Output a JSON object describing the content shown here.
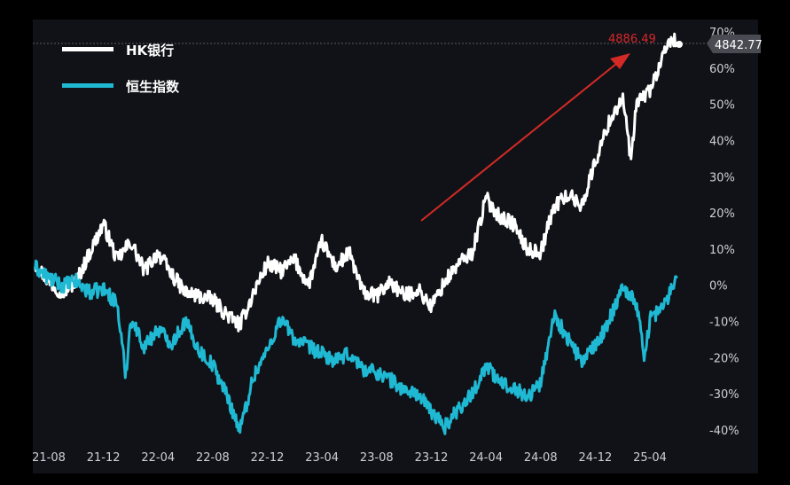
{
  "chart_data": {
    "type": "line",
    "title": "",
    "xlabel": "",
    "ylabel": "",
    "x_ticks": [
      "21-08",
      "21-12",
      "22-04",
      "22-08",
      "22-12",
      "23-04",
      "23-08",
      "23-12",
      "24-04",
      "24-08",
      "24-12",
      "25-04"
    ],
    "y_ticks": [
      "70%",
      "60%",
      "50%",
      "40%",
      "30%",
      "20%",
      "10%",
      "0%",
      "-10%",
      "-20%",
      "-30%",
      "-40%"
    ],
    "ylim": [
      -42,
      72
    ],
    "x_range": [
      "2021-07",
      "2025-06"
    ],
    "grid": false,
    "legend": "top-left",
    "background": "#111217",
    "series": [
      {
        "name": "HK银行",
        "color": "#ffffff",
        "points": [
          [
            "2021-07",
            6
          ],
          [
            "2021-08",
            1
          ],
          [
            "2021-09",
            -2
          ],
          [
            "2021-10",
            1
          ],
          [
            "2021-11",
            9
          ],
          [
            "2021-12",
            17
          ],
          [
            "2022-01",
            7
          ],
          [
            "2022-02",
            12
          ],
          [
            "2022-03",
            4
          ],
          [
            "2022-04",
            9
          ],
          [
            "2022-05",
            3
          ],
          [
            "2022-06",
            -2
          ],
          [
            "2022-07",
            -3
          ],
          [
            "2022-08",
            -4
          ],
          [
            "2022-09",
            -8
          ],
          [
            "2022-10",
            -11
          ],
          [
            "2022-11",
            -2
          ],
          [
            "2022-12",
            6
          ],
          [
            "2023-01",
            4
          ],
          [
            "2023-02",
            7
          ],
          [
            "2023-03",
            0
          ],
          [
            "2023-04",
            12
          ],
          [
            "2023-05",
            5
          ],
          [
            "2023-06",
            9
          ],
          [
            "2023-07",
            -2
          ],
          [
            "2023-08",
            -3
          ],
          [
            "2023-09",
            1
          ],
          [
            "2023-10",
            -3
          ],
          [
            "2023-11",
            -1
          ],
          [
            "2023-12",
            -6
          ],
          [
            "2024-01",
            1
          ],
          [
            "2024-02",
            6
          ],
          [
            "2024-03",
            9
          ],
          [
            "2024-04",
            24
          ],
          [
            "2024-05",
            19
          ],
          [
            "2024-06",
            17
          ],
          [
            "2024-07",
            10
          ],
          [
            "2024-08",
            9
          ],
          [
            "2024-09",
            22
          ],
          [
            "2024-10",
            25
          ],
          [
            "2024-11",
            22
          ],
          [
            "2024-12",
            34
          ],
          [
            "2025-01",
            45
          ],
          [
            "2025-02",
            52
          ],
          [
            "2025-02-20",
            34
          ],
          [
            "2025-03",
            50
          ],
          [
            "2025-04",
            54
          ],
          [
            "2025-05",
            63
          ],
          [
            "2025-05-15",
            68
          ],
          [
            "2025-06",
            67
          ]
        ]
      },
      {
        "name": "恒生指数",
        "color": "#1fb9d4",
        "points": [
          [
            "2021-07",
            5
          ],
          [
            "2021-08",
            2
          ],
          [
            "2021-09",
            0
          ],
          [
            "2021-10",
            1
          ],
          [
            "2021-11",
            -2
          ],
          [
            "2021-12",
            -1
          ],
          [
            "2022-01",
            -5
          ],
          [
            "2022-01-20",
            -25
          ],
          [
            "2022-02",
            -9
          ],
          [
            "2022-03",
            -17
          ],
          [
            "2022-04",
            -12
          ],
          [
            "2022-05",
            -16
          ],
          [
            "2022-06",
            -10
          ],
          [
            "2022-07",
            -18
          ],
          [
            "2022-08",
            -22
          ],
          [
            "2022-09",
            -30
          ],
          [
            "2022-10",
            -40
          ],
          [
            "2022-11",
            -25
          ],
          [
            "2022-12",
            -18
          ],
          [
            "2023-01",
            -9
          ],
          [
            "2023-02",
            -15
          ],
          [
            "2023-03",
            -17
          ],
          [
            "2023-04",
            -19
          ],
          [
            "2023-05",
            -21
          ],
          [
            "2023-06",
            -19
          ],
          [
            "2023-07",
            -23
          ],
          [
            "2023-08",
            -24
          ],
          [
            "2023-09",
            -26
          ],
          [
            "2023-10",
            -29
          ],
          [
            "2023-11",
            -30
          ],
          [
            "2023-12",
            -35
          ],
          [
            "2024-01",
            -39
          ],
          [
            "2024-02",
            -34
          ],
          [
            "2024-03",
            -30
          ],
          [
            "2024-04",
            -22
          ],
          [
            "2024-05",
            -27
          ],
          [
            "2024-06",
            -28
          ],
          [
            "2024-07",
            -31
          ],
          [
            "2024-08",
            -27
          ],
          [
            "2024-09",
            -8
          ],
          [
            "2024-10",
            -15
          ],
          [
            "2024-11",
            -21
          ],
          [
            "2024-12",
            -17
          ],
          [
            "2025-01",
            -10
          ],
          [
            "2025-02",
            0
          ],
          [
            "2025-03",
            -5
          ],
          [
            "2025-03-20",
            -20
          ],
          [
            "2025-04",
            -9
          ],
          [
            "2025-05",
            -6
          ],
          [
            "2025-06",
            3
          ]
        ]
      }
    ],
    "annotations": {
      "peak_label": "4886.49",
      "last_value_label": "4842.77"
    }
  },
  "legend": {
    "items": [
      {
        "label": "HK银行",
        "color": "#ffffff"
      },
      {
        "label": "恒生指数",
        "color": "#1fb9d4"
      }
    ]
  },
  "colors": {
    "arrow": "#d42a25",
    "axis_label_bg": "#4a4b52",
    "ref_line": "#5a5b62"
  }
}
